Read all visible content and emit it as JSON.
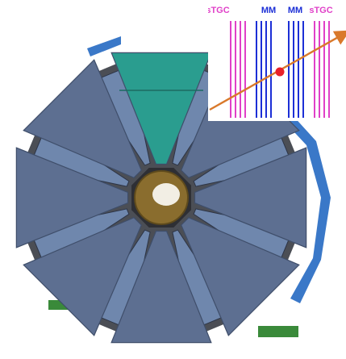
{
  "inset": {
    "labels": [
      {
        "text": "sTGC",
        "kind": "stgc"
      },
      {
        "text": "MM",
        "kind": "mm"
      },
      {
        "text": "MM",
        "kind": "mm"
      },
      {
        "text": "sTGC",
        "kind": "stgc"
      }
    ],
    "colors": {
      "stgc": "#e040c8",
      "mm": "#1c2fd6",
      "track": "#d9792b",
      "hit": "#e8202a"
    }
  },
  "wheel": {
    "sector_count": 8,
    "colors": {
      "sector": "#5d6f91",
      "sector_edge": "#3f4e6a",
      "highlight_sector": "#2a9d8f",
      "hub": "#8a6d2e",
      "frame_blue": "#3a78c8",
      "support_green": "#3a8a3a"
    }
  }
}
